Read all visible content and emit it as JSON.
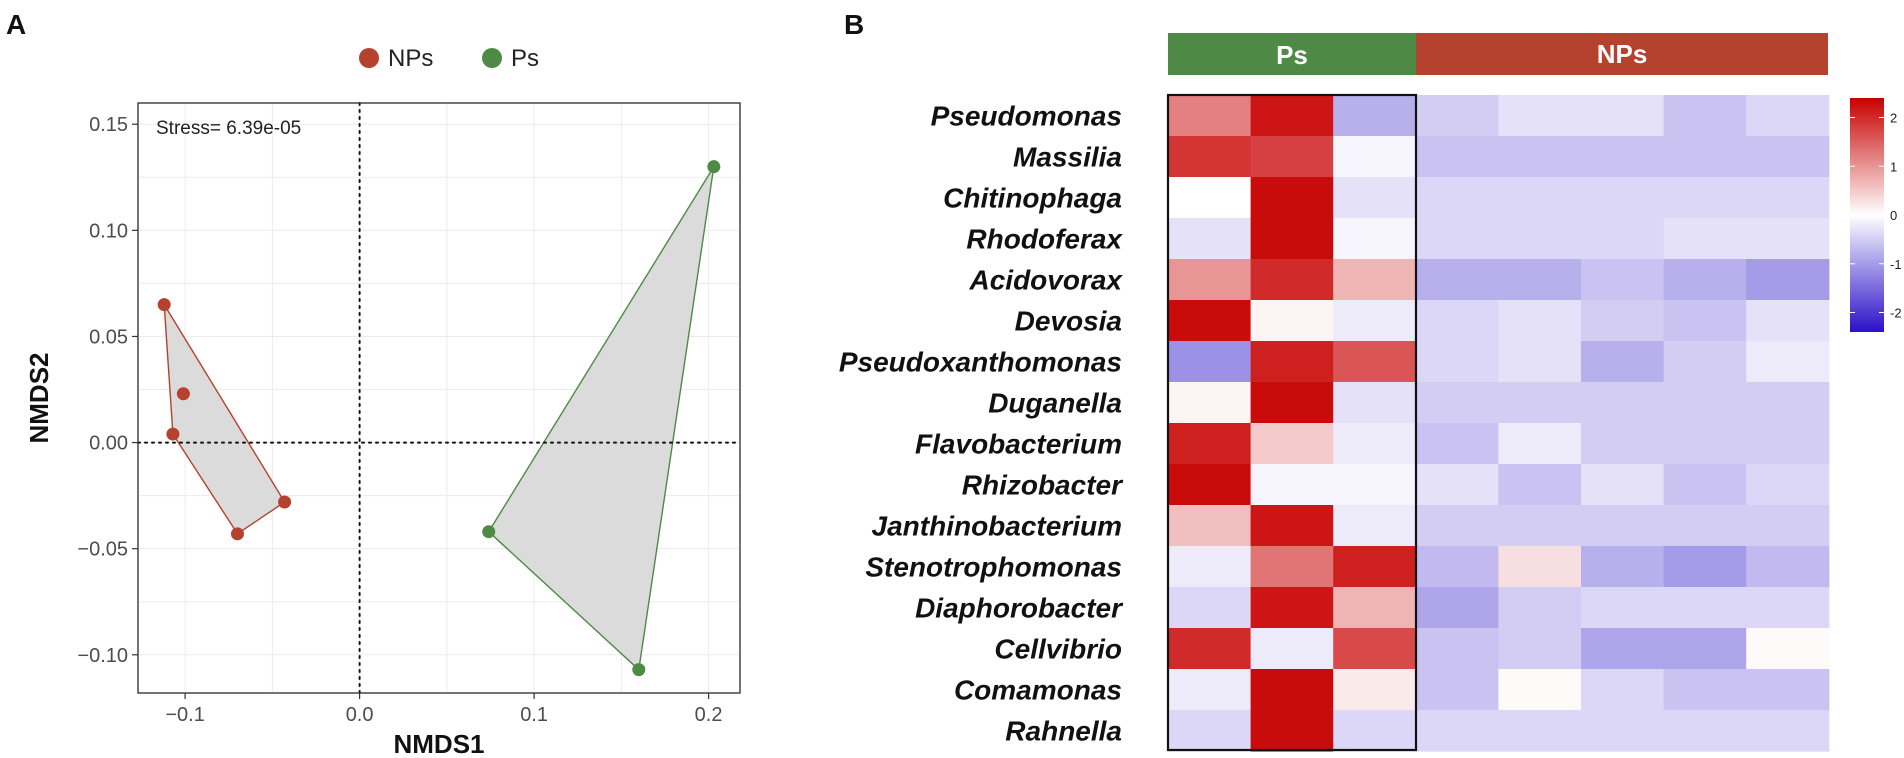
{
  "colors": {
    "nps": "#b5412f",
    "ps": "#4e8a45",
    "hull_fill": "#d9d9d9",
    "panel_border": "#333333"
  },
  "panel_a": {
    "letter": "A",
    "legend": [
      {
        "label": "NPs",
        "group": "nps"
      },
      {
        "label": "Ps",
        "group": "ps"
      }
    ],
    "stress_label": "Stress= 6.39e-05"
  },
  "panel_b": {
    "letter": "B",
    "group_labels": {
      "ps": "Ps",
      "nps": "NPs"
    }
  },
  "chart_data": [
    {
      "type": "scatter",
      "title": "",
      "xlabel": "NMDS1",
      "ylabel": "NMDS2",
      "xlim": [
        -0.127,
        0.218
      ],
      "ylim": [
        -0.118,
        0.16
      ],
      "xticks": [
        -0.1,
        0.0,
        0.1,
        0.2
      ],
      "yticks": [
        -0.1,
        -0.05,
        0.0,
        0.05,
        0.1,
        0.15
      ],
      "xtick_labels": [
        "−0.1",
        "0.0",
        "0.1",
        "0.2"
      ],
      "ytick_labels": [
        "−0.10",
        "−0.05",
        "0.00",
        "0.05",
        "0.10",
        "0.15"
      ],
      "reference_lines": {
        "x": 0,
        "y": 0
      },
      "grid": true,
      "legend_position": "top",
      "annotation": "Stress= 6.39e-05",
      "series": [
        {
          "name": "NPs",
          "color": "#b5412f",
          "points": [
            {
              "x": -0.112,
              "y": 0.065
            },
            {
              "x": -0.101,
              "y": 0.023
            },
            {
              "x": -0.107,
              "y": 0.004
            },
            {
              "x": -0.043,
              "y": -0.028
            },
            {
              "x": -0.07,
              "y": -0.043
            }
          ]
        },
        {
          "name": "Ps",
          "color": "#4e8a45",
          "points": [
            {
              "x": 0.203,
              "y": 0.13
            },
            {
              "x": 0.074,
              "y": -0.042
            },
            {
              "x": 0.16,
              "y": -0.107
            }
          ]
        }
      ]
    },
    {
      "type": "heatmap",
      "title": "",
      "columns_groups": [
        {
          "name": "Ps",
          "count": 3,
          "color": "#4e8a45"
        },
        {
          "name": "NPs",
          "count": 5,
          "color": "#b5412f"
        }
      ],
      "rows": [
        "Pseudomonas",
        "Massilia",
        "Chitinophaga",
        "Rhodoferax",
        "Acidovorax",
        "Devosia",
        "Pseudoxanthomonas",
        "Duganella",
        "Flavobacterium",
        "Rhizobacter",
        "Janthinobacterium",
        "Stenotrophomonas",
        "Diaphorobacter",
        "Cellvibrio",
        "Comamonas",
        "Rahnella"
      ],
      "values": [
        [
          1.2,
          2.2,
          -0.8,
          -0.5,
          -0.3,
          -0.3,
          -0.6,
          -0.4
        ],
        [
          1.9,
          1.8,
          -0.1,
          -0.6,
          -0.6,
          -0.6,
          -0.6,
          -0.6
        ],
        [
          0.0,
          2.3,
          -0.3,
          -0.4,
          -0.4,
          -0.4,
          -0.4,
          -0.4
        ],
        [
          -0.3,
          2.3,
          -0.1,
          -0.4,
          -0.4,
          -0.4,
          -0.3,
          -0.3
        ],
        [
          1.0,
          2.0,
          0.7,
          -0.8,
          -0.8,
          -0.6,
          -0.8,
          -1.0
        ],
        [
          2.3,
          0.1,
          -0.2,
          -0.4,
          -0.3,
          -0.5,
          -0.6,
          -0.3
        ],
        [
          -1.1,
          2.1,
          1.6,
          -0.4,
          -0.3,
          -0.8,
          -0.5,
          -0.2
        ],
        [
          0.1,
          2.3,
          -0.3,
          -0.5,
          -0.5,
          -0.5,
          -0.5,
          -0.5
        ],
        [
          2.1,
          0.5,
          -0.2,
          -0.6,
          -0.2,
          -0.5,
          -0.5,
          -0.5
        ],
        [
          2.3,
          -0.1,
          -0.1,
          -0.3,
          -0.6,
          -0.3,
          -0.6,
          -0.4
        ],
        [
          0.6,
          2.2,
          -0.2,
          -0.5,
          -0.5,
          -0.5,
          -0.5,
          -0.5
        ],
        [
          -0.2,
          1.3,
          2.1,
          -0.7,
          0.3,
          -0.8,
          -1.0,
          -0.7
        ],
        [
          -0.4,
          2.2,
          0.7,
          -0.9,
          -0.5,
          -0.4,
          -0.4,
          -0.4
        ],
        [
          2.0,
          -0.2,
          1.7,
          -0.6,
          -0.5,
          -0.9,
          -0.9,
          0.05
        ],
        [
          -0.2,
          2.3,
          0.2,
          -0.6,
          0.05,
          -0.4,
          -0.6,
          -0.6
        ],
        [
          -0.4,
          2.3,
          -0.4,
          -0.4,
          -0.4,
          -0.4,
          -0.4,
          -0.4
        ]
      ],
      "color_scale": {
        "min": -2.4,
        "max": 2.4,
        "low_color": "#2a10c8",
        "mid_color": "#ffffff",
        "high_color": "#c80000",
        "ticks": [
          -2,
          -1,
          0,
          1,
          2
        ],
        "tick_labels": [
          "-2",
          "-1",
          "0",
          "1",
          "2"
        ]
      },
      "outlined_group": "Ps",
      "legend_position": "right"
    }
  ]
}
